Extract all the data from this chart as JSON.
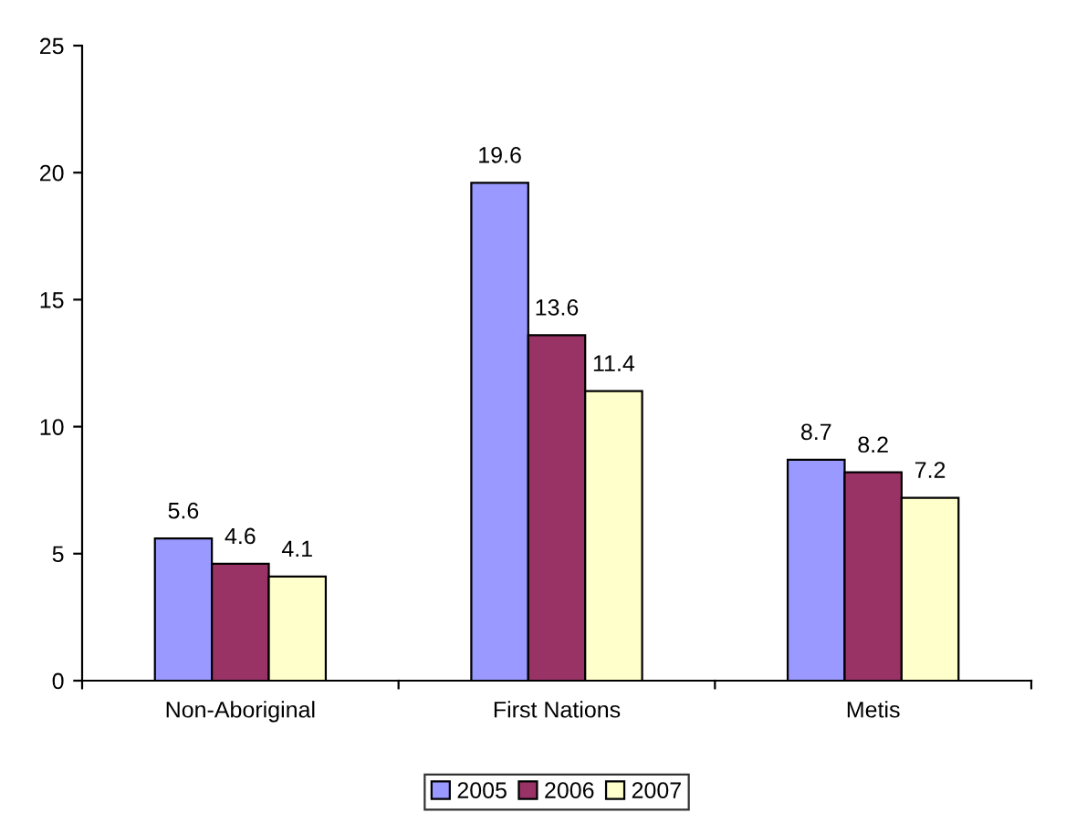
{
  "chart_data": {
    "type": "bar",
    "categories": [
      "Non-Aboriginal",
      "First Nations",
      "Metis"
    ],
    "series": [
      {
        "name": "2005",
        "color": "#9999ff",
        "values": [
          5.6,
          19.6,
          8.7
        ]
      },
      {
        "name": "2006",
        "color": "#993366",
        "values": [
          4.6,
          13.6,
          8.2
        ]
      },
      {
        "name": "2007",
        "color": "#ffffcc",
        "values": [
          4.1,
          11.4,
          7.2
        ]
      }
    ],
    "ylim": [
      0,
      25
    ],
    "yticks": [
      0,
      5,
      10,
      15,
      20,
      25
    ],
    "grid": false,
    "legend": "bottom",
    "data_labels": true
  }
}
